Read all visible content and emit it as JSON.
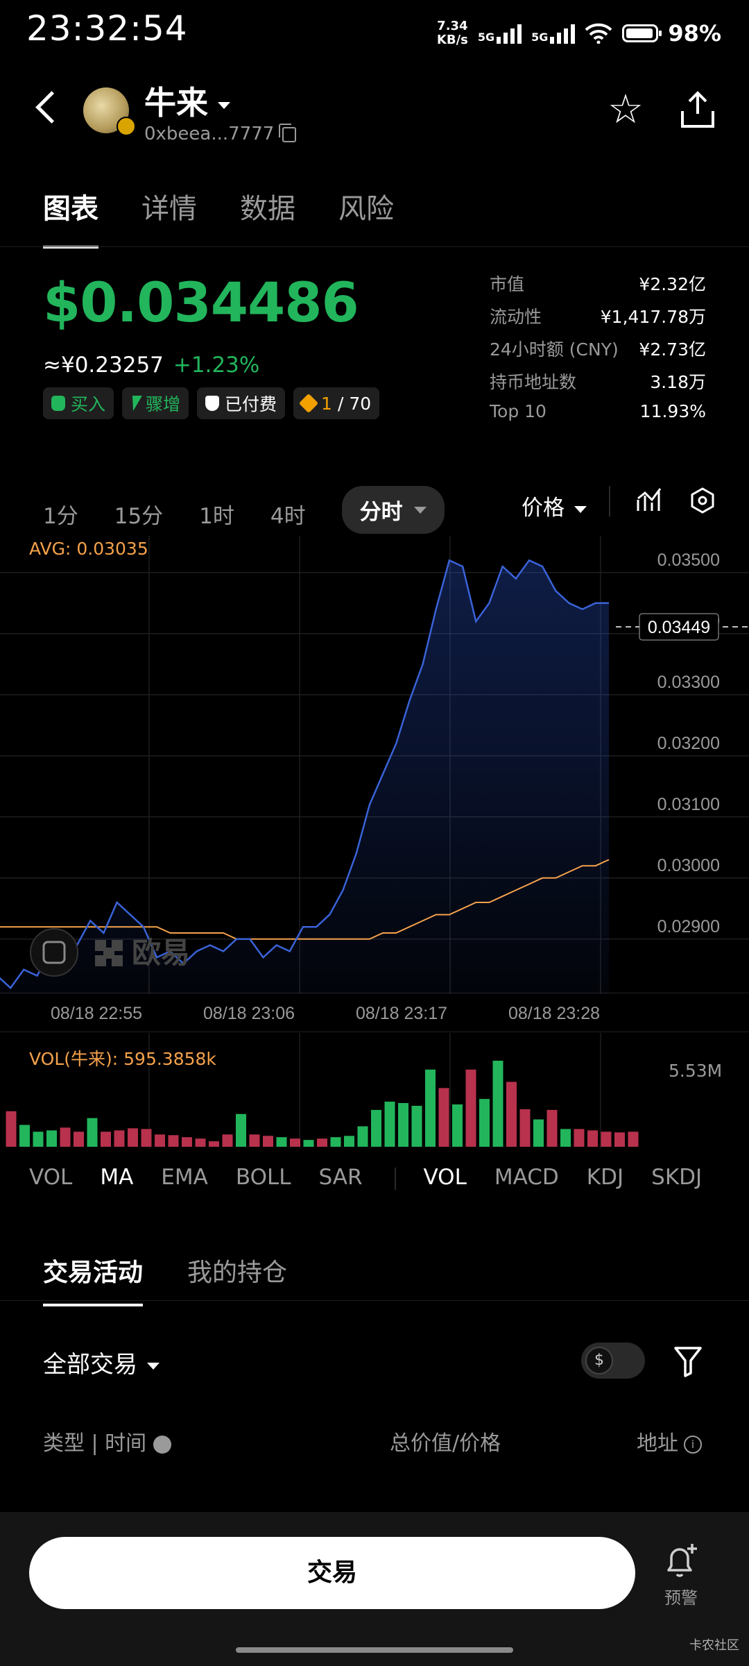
{
  "status_bar": {
    "time": "23:32:54",
    "net_speed": "7.34",
    "net_unit": "KB/s",
    "sig1": "5G",
    "sig2": "5G",
    "battery": "98%"
  },
  "header": {
    "token_name": "牛来",
    "address": "0xbeea...7777"
  },
  "tabs": [
    {
      "label": "图表"
    },
    {
      "label": "详情"
    },
    {
      "label": "数据"
    },
    {
      "label": "风险"
    }
  ],
  "price": {
    "usd": "$0.034486",
    "cny": "≈¥0.23257",
    "change": "+1.23%"
  },
  "badges": {
    "buy": "买入",
    "surge": "骤增",
    "paid": "已付费",
    "rank": "1",
    "rank_total": "/ 70"
  },
  "stats": [
    {
      "label": "市值",
      "value": "¥2.32亿"
    },
    {
      "label": "流动性",
      "value": "¥1,417.78万"
    },
    {
      "label": "24小时额 (CNY)",
      "value": "¥2.73亿"
    },
    {
      "label": "持币地址数",
      "value": "3.18万"
    },
    {
      "label": "Top 10",
      "value": "11.93%"
    }
  ],
  "intervals": [
    "1分",
    "15分",
    "1时",
    "4时"
  ],
  "interval_active": "分时",
  "price_selector": "价格",
  "chart": {
    "avg_label": "AVG: 0.03035",
    "current_price": "0.03449",
    "watermark": "欧易",
    "vol_label": "VOL(牛来): 595.3858k",
    "vol_max": "5.53M"
  },
  "chart_data": {
    "type": "area",
    "x": [
      "22:46",
      "22:47",
      "22:48",
      "22:49",
      "22:50",
      "22:51",
      "22:52",
      "22:53",
      "22:54",
      "22:55",
      "22:56",
      "22:57",
      "22:58",
      "22:59",
      "23:00",
      "23:01",
      "23:02",
      "23:03",
      "23:04",
      "23:05",
      "23:06",
      "23:07",
      "23:08",
      "23:09",
      "23:10",
      "23:11",
      "23:12",
      "23:13",
      "23:14",
      "23:15",
      "23:16",
      "23:17",
      "23:18",
      "23:19",
      "23:20",
      "23:21",
      "23:22",
      "23:23",
      "23:24",
      "23:25",
      "23:26",
      "23:27",
      "23:28",
      "23:29",
      "23:30",
      "23:31",
      "23:32"
    ],
    "series": [
      {
        "values": [
          0.0284,
          0.0282,
          0.0285,
          0.0284,
          0.0288,
          0.0286,
          0.0289,
          0.0293,
          0.0291,
          0.0296,
          0.0294,
          0.0292,
          0.0287,
          0.0288,
          0.0286,
          0.0288,
          0.0289,
          0.0288,
          0.029,
          0.029,
          0.0287,
          0.0289,
          0.0288,
          0.0292,
          0.0292,
          0.0294,
          0.0298,
          0.0304,
          0.0312,
          0.0317,
          0.0322,
          0.0329,
          0.0335,
          0.0344,
          0.0352,
          0.0351,
          0.0342,
          0.0345,
          0.0351,
          0.0349,
          0.0352,
          0.0351,
          0.0347,
          0.0345,
          0.0344,
          0.0345,
          0.0345
        ]
      },
      {
        "values": [
          0.0292,
          0.0292,
          0.0292,
          0.0292,
          0.0292,
          0.0292,
          0.0292,
          0.0292,
          0.0292,
          0.0292,
          0.0292,
          0.0292,
          0.0292,
          0.0291,
          0.0291,
          0.0291,
          0.0291,
          0.0291,
          0.029,
          0.029,
          0.029,
          0.029,
          0.029,
          0.029,
          0.029,
          0.029,
          0.029,
          0.029,
          0.029,
          0.0291,
          0.0291,
          0.0292,
          0.0293,
          0.0294,
          0.0294,
          0.0295,
          0.0296,
          0.0296,
          0.0297,
          0.0298,
          0.0299,
          0.03,
          0.03,
          0.0301,
          0.0302,
          0.0302,
          0.0303
        ]
      }
    ],
    "xticks": [
      "08/18 22:55",
      "08/18 23:06",
      "08/18 23:17",
      "08/18 23:28"
    ],
    "yticks": [
      "0.03500",
      "0.03400",
      "0.03300",
      "0.03200",
      "0.03100",
      "0.03000",
      "0.02900"
    ],
    "ylim": [
      0.0281,
      0.0356
    ],
    "volume": [
      0.52,
      0.32,
      0.22,
      0.24,
      0.28,
      0.22,
      0.42,
      0.22,
      0.24,
      0.27,
      0.26,
      0.18,
      0.17,
      0.14,
      0.12,
      0.08,
      0.18,
      0.48,
      0.18,
      0.16,
      0.14,
      0.12,
      0.1,
      0.12,
      0.14,
      0.16,
      0.3,
      0.54,
      0.66,
      0.64,
      0.6,
      1.13,
      0.86,
      0.62,
      1.13,
      0.7,
      1.26,
      0.95,
      0.55,
      0.4,
      0.54,
      0.26,
      0.26,
      0.24,
      0.22,
      0.21,
      0.22
    ],
    "volume_up": [
      false,
      true,
      true,
      true,
      false,
      false,
      true,
      false,
      false,
      false,
      false,
      false,
      false,
      false,
      false,
      false,
      false,
      true,
      false,
      false,
      true,
      false,
      true,
      false,
      true,
      true,
      true,
      true,
      true,
      true,
      true,
      true,
      false,
      true,
      false,
      true,
      true,
      false,
      false,
      true,
      false,
      true,
      false,
      false,
      false,
      false,
      false
    ]
  },
  "indicators_main": [
    "VOL",
    "MA",
    "EMA",
    "BOLL",
    "SAR"
  ],
  "indicators_sub": [
    "VOL",
    "MACD",
    "KDJ",
    "SKDJ"
  ],
  "activity": {
    "tabs": [
      "交易活动",
      "我的持仓"
    ],
    "filter": "全部交易",
    "toggle_symbol": "$",
    "col_type": "类型 | 时间",
    "col_value": "总价值/价格",
    "col_addr": "地址"
  },
  "bottom": {
    "trade": "交易",
    "alert": "预警",
    "watermark": "卡农社区"
  },
  "colors": {
    "up": "#22b55c",
    "down": "#b8324d",
    "line": "#3a63d8",
    "avg": "#f5a24b"
  }
}
